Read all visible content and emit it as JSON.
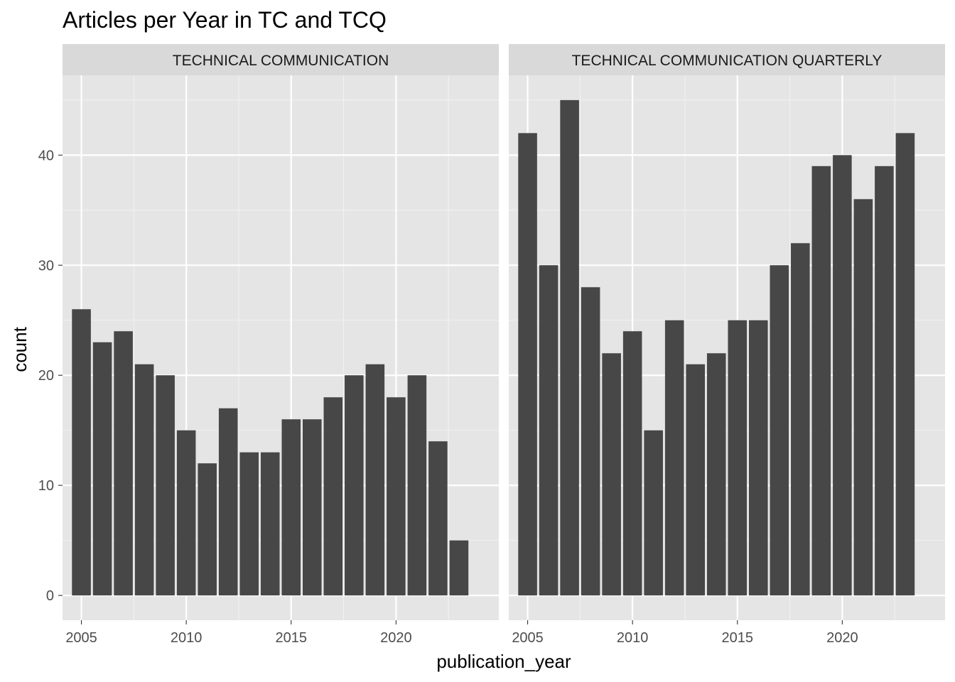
{
  "chart_data": {
    "type": "bar",
    "title": "Articles per Year in TC and TCQ",
    "xlabel": "publication_year",
    "ylabel": "count",
    "x": [
      2005,
      2006,
      2007,
      2008,
      2009,
      2010,
      2011,
      2012,
      2013,
      2014,
      2015,
      2016,
      2017,
      2018,
      2019,
      2020,
      2021,
      2022,
      2023
    ],
    "xticks": [
      2005,
      2010,
      2015,
      2020
    ],
    "yticks": [
      0,
      10,
      20,
      30,
      40
    ],
    "ylim": [
      -2.25,
      47.25
    ],
    "xlim": [
      2004.1,
      2024.9
    ],
    "grid": true,
    "bar_color": "#474747",
    "panel_background": "#e5e5e5",
    "strip_background": "#d9d9d9",
    "panels": [
      {
        "label": "TECHNICAL COMMUNICATION",
        "values": [
          26,
          23,
          24,
          21,
          20,
          15,
          12,
          17,
          13,
          13,
          16,
          16,
          18,
          20,
          21,
          18,
          20,
          14,
          5
        ]
      },
      {
        "label": "TECHNICAL COMMUNICATION QUARTERLY",
        "values": [
          42,
          30,
          45,
          28,
          22,
          24,
          15,
          25,
          21,
          22,
          25,
          25,
          30,
          32,
          39,
          40,
          36,
          39,
          42
        ]
      }
    ]
  }
}
